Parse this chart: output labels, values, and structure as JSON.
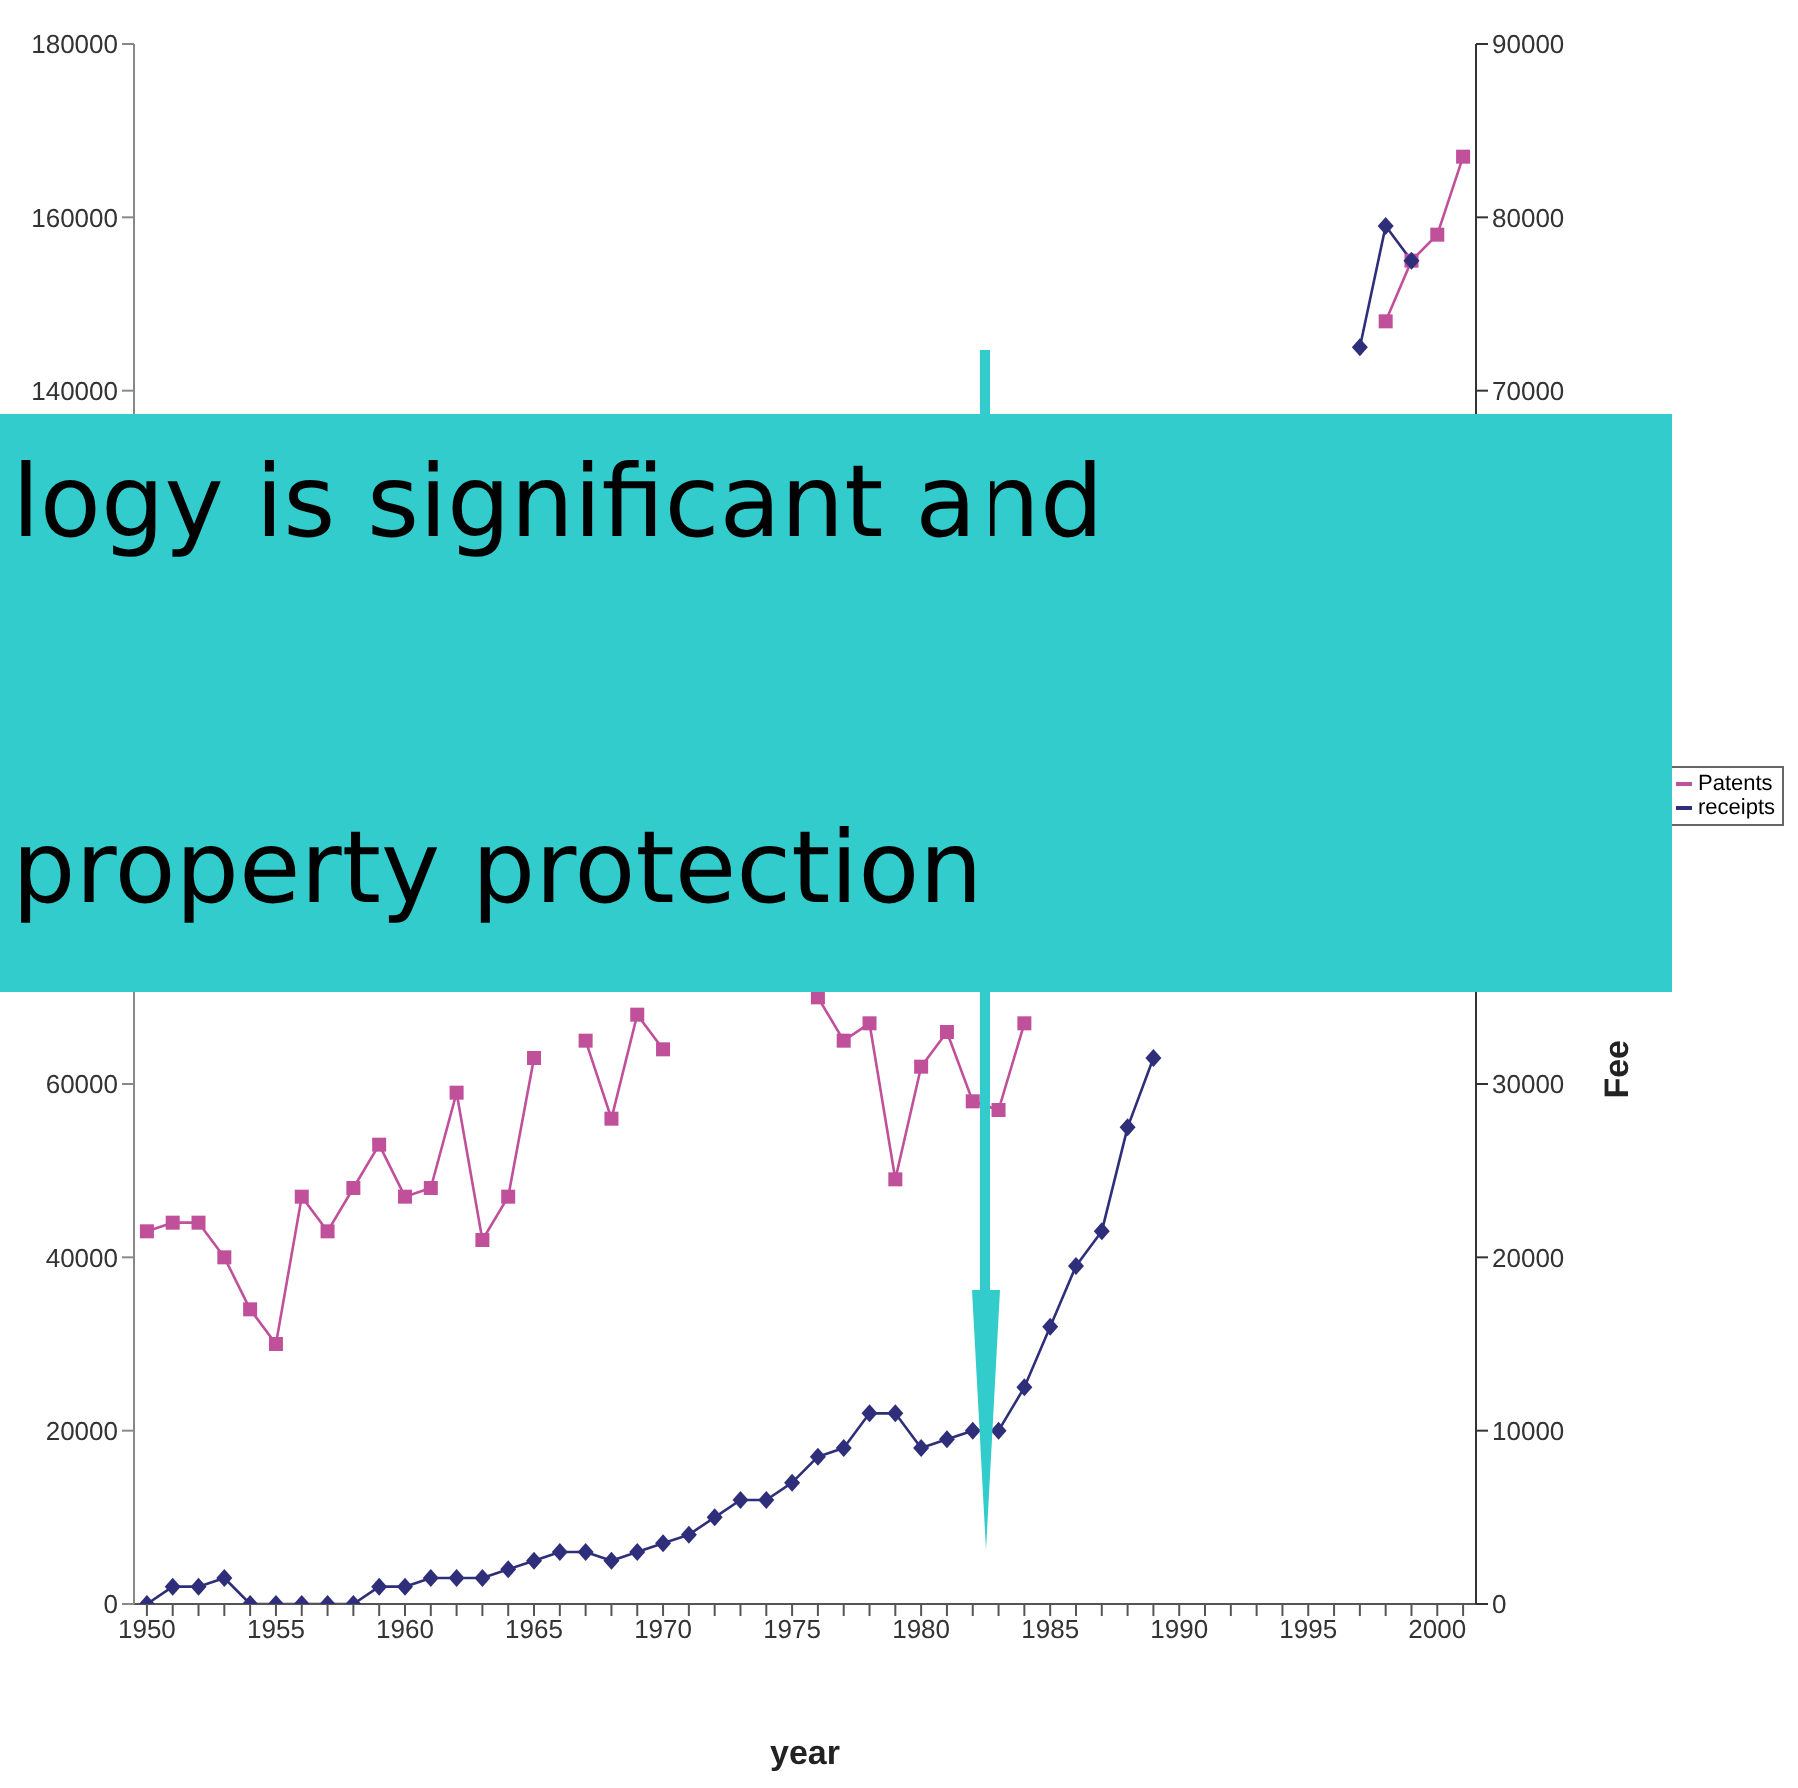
{
  "chart_data": {
    "type": "line",
    "xlabel": "year",
    "y2label": "Fee",
    "x": [
      1950,
      1951,
      1952,
      1953,
      1954,
      1955,
      1956,
      1957,
      1958,
      1959,
      1960,
      1961,
      1962,
      1963,
      1964,
      1965,
      1966,
      1967,
      1968,
      1969,
      1970,
      1971,
      1972,
      1973,
      1974,
      1975,
      1976,
      1977,
      1978,
      1979,
      1980,
      1981,
      1982,
      1983,
      1984,
      1985,
      1986,
      1987,
      1988,
      1989,
      1990,
      1991,
      1992,
      1993,
      1994,
      1995,
      1996,
      1997,
      1998,
      1999,
      2000,
      2001
    ],
    "series": [
      {
        "name": "Patents",
        "color": "#c0509a",
        "marker": "square",
        "values": [
          43000,
          44000,
          44000,
          40000,
          34000,
          30000,
          47000,
          43000,
          48000,
          53000,
          47000,
          48000,
          59000,
          42000,
          47000,
          63000,
          null,
          65000,
          56000,
          68000,
          64000,
          null,
          null,
          null,
          null,
          null,
          70000,
          65000,
          67000,
          49000,
          62000,
          66000,
          58000,
          57000,
          67000,
          null,
          null,
          null,
          null,
          null,
          null,
          null,
          null,
          null,
          null,
          null,
          null,
          null,
          148000,
          155000,
          158000,
          167000
        ]
      },
      {
        "name": "receipts",
        "color": "#2e2e7a",
        "marker": "diamond",
        "axis": "y2",
        "values": [
          0,
          1000,
          1000,
          1500,
          0,
          0,
          0,
          0,
          0,
          1000,
          1000,
          1500,
          1500,
          1500,
          2000,
          2500,
          3000,
          3000,
          2500,
          3000,
          3500,
          4000,
          5000,
          6000,
          6000,
          7000,
          8500,
          9000,
          11000,
          11000,
          9000,
          9500,
          10000,
          10000,
          12500,
          16000,
          19500,
          21500,
          27500,
          31500,
          null,
          null,
          null,
          null,
          null,
          null,
          null,
          72500,
          79500,
          77500,
          null,
          null
        ]
      }
    ],
    "xlim": [
      1949.5,
      2001.5
    ],
    "xticks": [
      1950,
      {
        "value": 1951,
        "label": null
      },
      {
        "value": 1952,
        "label": null
      },
      {
        "value": 1953,
        "label": null
      },
      {
        "value": 1954,
        "label": null
      },
      1955,
      {
        "value": 1956,
        "label": null
      },
      {
        "value": 1957,
        "label": null
      },
      {
        "value": 1958,
        "label": null
      },
      {
        "value": 1959,
        "label": null
      },
      1960,
      {
        "value": 1961,
        "label": null
      },
      {
        "value": 1962,
        "label": null
      },
      {
        "value": 1963,
        "label": null
      },
      {
        "value": 1964,
        "label": null
      },
      1965,
      {
        "value": 1966,
        "label": null
      },
      {
        "value": 1967,
        "label": null
      },
      {
        "value": 1968,
        "label": null
      },
      {
        "value": 1969,
        "label": null
      },
      1970,
      {
        "value": 1971,
        "label": null
      },
      {
        "value": 1972,
        "label": null
      },
      {
        "value": 1973,
        "label": null
      },
      {
        "value": 1974,
        "label": null
      },
      1975,
      {
        "value": 1976,
        "label": null
      },
      {
        "value": 1977,
        "label": null
      },
      {
        "value": 1978,
        "label": null
      },
      {
        "value": 1979,
        "label": null
      },
      1980,
      {
        "value": 1981,
        "label": null
      },
      {
        "value": 1982,
        "label": null
      },
      {
        "value": 1983,
        "label": null
      },
      {
        "value": 1984,
        "label": null
      },
      1985,
      {
        "value": 1986,
        "label": null
      },
      {
        "value": 1987,
        "label": null
      },
      {
        "value": 1988,
        "label": null
      },
      {
        "value": 1989,
        "label": null
      },
      1990,
      {
        "value": 1991,
        "label": null
      },
      {
        "value": 1992,
        "label": null
      },
      {
        "value": 1993,
        "label": null
      },
      {
        "value": 1994,
        "label": null
      },
      1995,
      {
        "value": 1996,
        "label": null
      },
      {
        "value": 1997,
        "label": null
      },
      {
        "value": 1998,
        "label": null
      },
      {
        "value": 1999,
        "label": null
      },
      2000,
      {
        "value": 2001,
        "label": null
      }
    ],
    "ylim": [
      0,
      180000
    ],
    "yticks": [
      0,
      20000,
      40000,
      60000,
      140000,
      160000,
      180000
    ],
    "y2lim": [
      0,
      90000
    ],
    "y2ticks": [
      0,
      10000,
      20000,
      30000,
      70000,
      80000,
      90000
    ],
    "legend": "right",
    "grid": false,
    "annotations": [
      "logy is significant and",
      "property protection"
    ]
  }
}
